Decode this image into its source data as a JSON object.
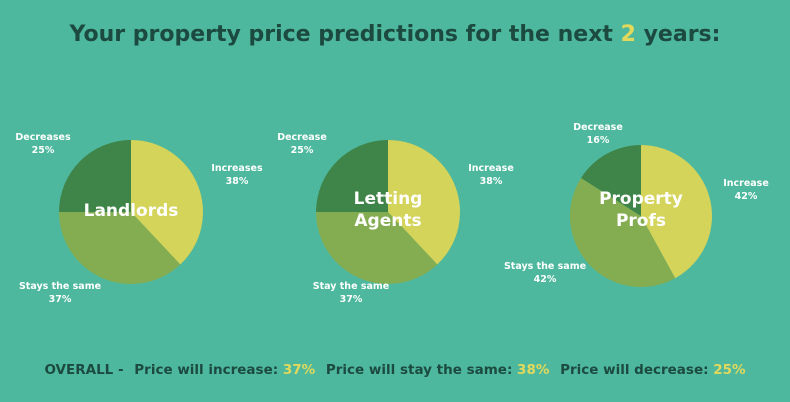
{
  "title": {
    "before": "Your property price predictions for the next",
    "highlight": "2",
    "after": "years:"
  },
  "colors": {
    "background": "#4db89d",
    "title_text": "#1c4a40",
    "highlight": "#e2d95c",
    "increase": "#d4d35a",
    "same": "#84ad51",
    "decrease": "#3f8448",
    "slice_label_text": "#ffffff"
  },
  "chart_data": [
    {
      "type": "pie",
      "title": "Landlords",
      "slices": [
        {
          "label": "Increases",
          "value": 38,
          "value_text": "38%",
          "key": "increase"
        },
        {
          "label": "Stays the same",
          "value": 37,
          "value_text": "37%",
          "key": "same"
        },
        {
          "label": "Decreases",
          "value": 25,
          "value_text": "25%",
          "key": "decrease"
        }
      ]
    },
    {
      "type": "pie",
      "title": "Letting Agents",
      "title_lines": [
        "Letting",
        "Agents"
      ],
      "slices": [
        {
          "label": "Increase",
          "value": 38,
          "value_text": "38%",
          "key": "increase"
        },
        {
          "label": "Stay the same",
          "value": 37,
          "value_text": "37%",
          "key": "same"
        },
        {
          "label": "Decrease",
          "value": 25,
          "value_text": "25%",
          "key": "decrease"
        }
      ]
    },
    {
      "type": "pie",
      "title": "Property Profs",
      "title_lines": [
        "Property",
        "Profs"
      ],
      "slices": [
        {
          "label": "Increase",
          "value": 42,
          "value_text": "42%",
          "key": "increase"
        },
        {
          "label": "Stays the same",
          "value": 42,
          "value_text": "42%",
          "key": "same"
        },
        {
          "label": "Decrease",
          "value": 16,
          "value_text": "16%",
          "key": "decrease"
        }
      ]
    }
  ],
  "overall": {
    "prefix": "OVERALL -",
    "increase_label": "Price will increase:",
    "increase_value": "37%",
    "same_label": "Price will stay the same:",
    "same_value": "38%",
    "decrease_label": "Price will decrease:",
    "decrease_value": "25%"
  }
}
